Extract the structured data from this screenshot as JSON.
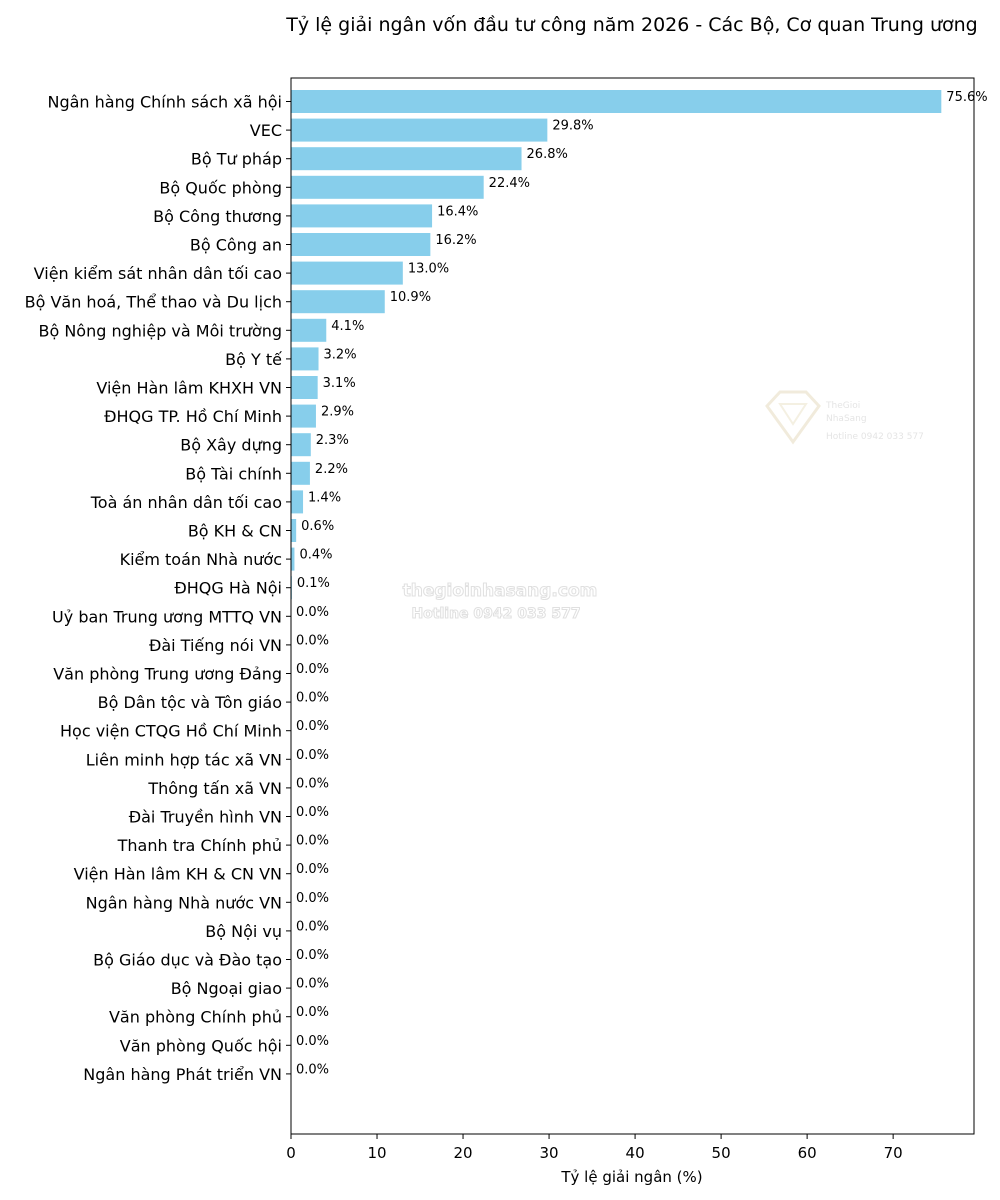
{
  "chart_data": {
    "type": "bar",
    "orientation": "horizontal",
    "title": "Tỷ lệ giải ngân vốn đầu tư công năm 2026 - Các Bộ, Cơ quan Trung ương",
    "xlabel": "Tỷ lệ giải ngân (%)",
    "ylabel": "",
    "xlim": [
      0,
      79.4
    ],
    "xticks": [
      0,
      10,
      20,
      30,
      40,
      50,
      60,
      70
    ],
    "bar_color": "#87ceeb",
    "value_suffix": "%",
    "categories": [
      "Ngân hàng Chính sách xã hội",
      "VEC",
      "Bộ Tư pháp",
      "Bộ Quốc phòng",
      "Bộ Công thương",
      "Bộ Công an",
      "Viện kiểm sát nhân dân tối cao",
      "Bộ Văn hoá, Thể thao và Du lịch",
      "Bộ Nông nghiệp và Môi trường",
      "Bộ Y tế",
      "Viện Hàn lâm KHXH VN",
      "ĐHQG TP. Hồ Chí Minh",
      "Bộ Xây dựng",
      "Bộ Tài chính",
      "Toà án nhân dân tối cao",
      "Bộ KH & CN",
      "Kiểm toán Nhà nước",
      "ĐHQG Hà Nội",
      "Uỷ ban Trung ương MTTQ VN",
      "Đài Tiếng nói VN",
      "Văn phòng Trung ương Đảng",
      "Bộ Dân tộc và Tôn giáo",
      "Học viện CTQG Hồ Chí Minh",
      "Liên minh hợp tác xã VN",
      "Thông tấn xã VN",
      "Đài Truyền hình VN",
      "Thanh tra Chính phủ",
      "Viện Hàn lâm KH & CN VN",
      "Ngân hàng Nhà nước VN",
      "Bộ Nội vụ",
      "Bộ Giáo dục và Đào tạo",
      "Bộ Ngoại giao",
      "Văn phòng Chính phủ",
      "Văn phòng Quốc hội",
      "Ngân hàng Phát triển VN"
    ],
    "values": [
      75.6,
      29.8,
      26.8,
      22.4,
      16.4,
      16.2,
      13.0,
      10.9,
      4.1,
      3.2,
      3.1,
      2.9,
      2.3,
      2.2,
      1.4,
      0.6,
      0.4,
      0.1,
      0.0,
      0.0,
      0.0,
      0.0,
      0.0,
      0.0,
      0.0,
      0.0,
      0.0,
      0.0,
      0.0,
      0.0,
      0.0,
      0.0,
      0.0,
      0.0,
      0.0
    ]
  },
  "watermark": {
    "site": "thegioinhasang.com",
    "hotline": "Hotline 0942 033 577",
    "logo_line1": "TheGioi",
    "logo_line2": "NhaSang",
    "logo_hotline": "Hotline 0942 033 577"
  }
}
